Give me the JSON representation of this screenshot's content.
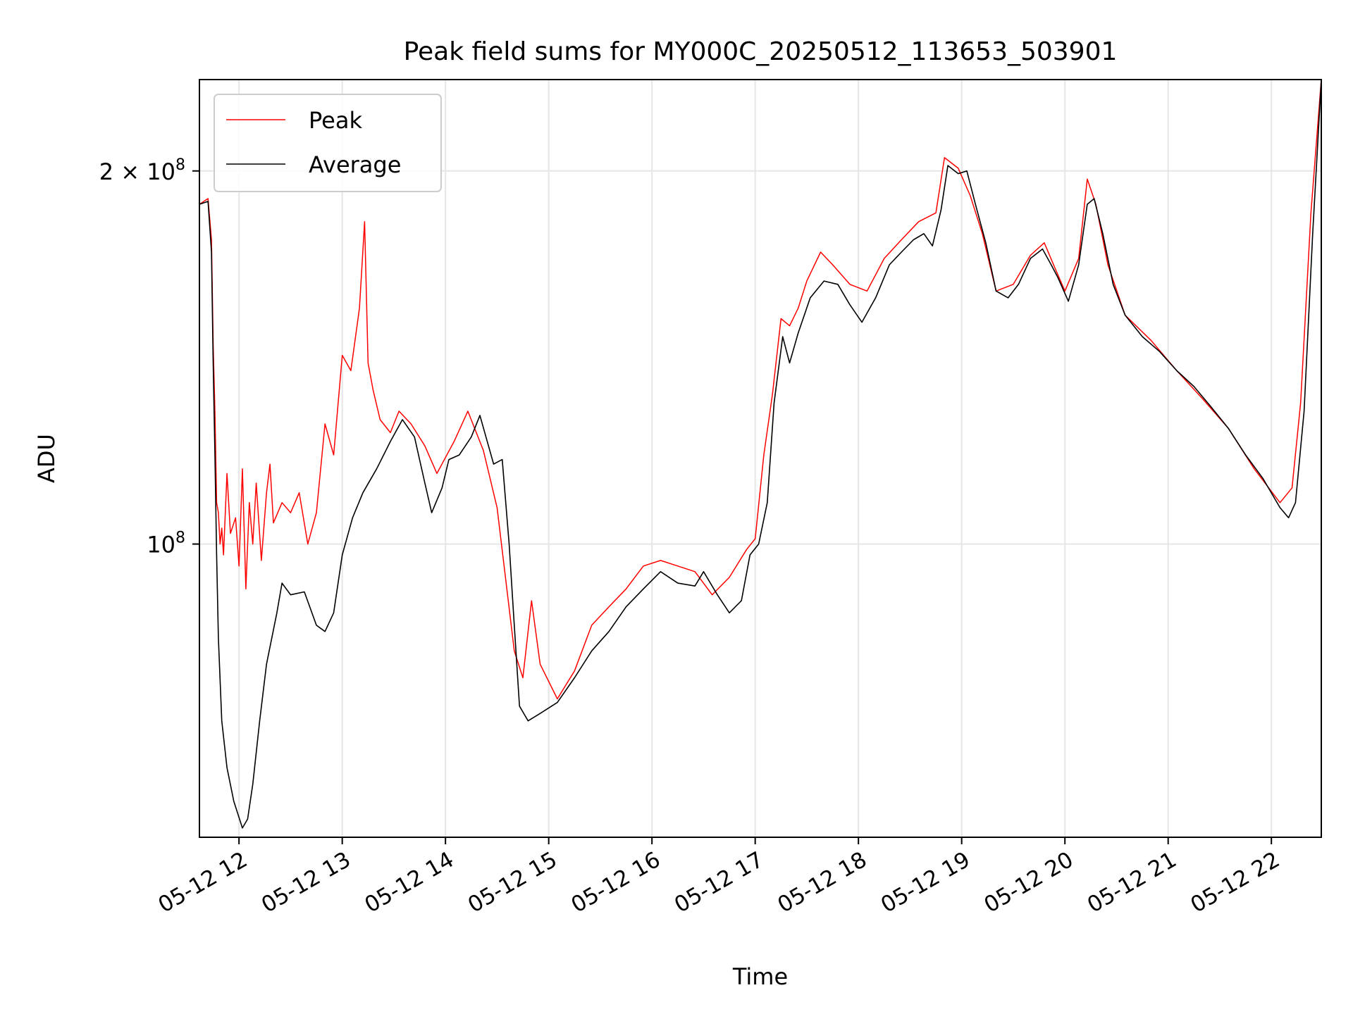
{
  "chart_data": {
    "type": "line",
    "title": "Peak field sums for MY000C_20250512_113653_503901",
    "xlabel": "Time",
    "ylabel": "ADU",
    "xscale": "time",
    "yscale": "log",
    "xlim": [
      "2025-05-12 11:37",
      "2025-05-12 22:29"
    ],
    "ylim": [
      58000000,
      237000000
    ],
    "grid": true,
    "legend": "top-left",
    "x_ticks": [
      "05-12 12",
      "05-12 13",
      "05-12 14",
      "05-12 15",
      "05-12 16",
      "05-12 17",
      "05-12 18",
      "05-12 19",
      "05-12 20",
      "05-12 21",
      "05-12 22"
    ],
    "y_ticks": [
      {
        "value": 100000000,
        "label": "10",
        "exp": "8"
      },
      {
        "value": 200000000,
        "label": "2 × 10",
        "exp": "8"
      }
    ],
    "series": [
      {
        "name": "Peak",
        "color": "#ff0000",
        "points": [
          [
            "2025-05-12 11:37",
            188000000
          ],
          [
            "2025-05-12 11:42",
            190000000
          ],
          [
            "2025-05-12 11:44",
            176000000
          ],
          [
            "2025-05-12 11:45",
            145000000
          ],
          [
            "2025-05-12 11:46",
            128000000
          ],
          [
            "2025-05-12 11:47",
            108000000
          ],
          [
            "2025-05-12 11:48",
            106000000
          ],
          [
            "2025-05-12 11:49",
            100000000
          ],
          [
            "2025-05-12 11:50",
            103000000
          ],
          [
            "2025-05-12 11:51",
            98000000
          ],
          [
            "2025-05-12 11:53",
            114000000
          ],
          [
            "2025-05-12 11:55",
            102000000
          ],
          [
            "2025-05-12 11:58",
            105000000
          ],
          [
            "2025-05-12 12:00",
            96000000
          ],
          [
            "2025-05-12 12:02",
            115000000
          ],
          [
            "2025-05-12 12:04",
            92000000
          ],
          [
            "2025-05-12 12:06",
            108000000
          ],
          [
            "2025-05-12 12:08",
            100000000
          ],
          [
            "2025-05-12 12:10",
            112000000
          ],
          [
            "2025-05-12 12:13",
            97000000
          ],
          [
            "2025-05-12 12:16",
            110000000
          ],
          [
            "2025-05-12 12:18",
            116000000
          ],
          [
            "2025-05-12 12:20",
            104000000
          ],
          [
            "2025-05-12 12:25",
            108000000
          ],
          [
            "2025-05-12 12:30",
            106000000
          ],
          [
            "2025-05-12 12:35",
            110000000
          ],
          [
            "2025-05-12 12:40",
            100000000
          ],
          [
            "2025-05-12 12:45",
            106000000
          ],
          [
            "2025-05-12 12:50",
            125000000
          ],
          [
            "2025-05-12 12:55",
            118000000
          ],
          [
            "2025-05-12 13:00",
            142000000
          ],
          [
            "2025-05-12 13:05",
            138000000
          ],
          [
            "2025-05-12 13:10",
            155000000
          ],
          [
            "2025-05-12 13:13",
            182000000
          ],
          [
            "2025-05-12 13:15",
            140000000
          ],
          [
            "2025-05-12 13:18",
            133000000
          ],
          [
            "2025-05-12 13:22",
            126000000
          ],
          [
            "2025-05-12 13:28",
            123000000
          ],
          [
            "2025-05-12 13:33",
            128000000
          ],
          [
            "2025-05-12 13:40",
            125000000
          ],
          [
            "2025-05-12 13:48",
            120000000
          ],
          [
            "2025-05-12 13:55",
            114000000
          ],
          [
            "2025-05-12 14:05",
            121000000
          ],
          [
            "2025-05-12 14:13",
            128000000
          ],
          [
            "2025-05-12 14:22",
            119000000
          ],
          [
            "2025-05-12 14:30",
            107000000
          ],
          [
            "2025-05-12 14:40",
            82000000
          ],
          [
            "2025-05-12 14:45",
            78000000
          ],
          [
            "2025-05-12 14:50",
            90000000
          ],
          [
            "2025-05-12 14:55",
            80000000
          ],
          [
            "2025-05-12 15:05",
            75000000
          ],
          [
            "2025-05-12 15:15",
            79000000
          ],
          [
            "2025-05-12 15:25",
            86000000
          ],
          [
            "2025-05-12 15:35",
            89000000
          ],
          [
            "2025-05-12 15:45",
            92000000
          ],
          [
            "2025-05-12 15:55",
            96000000
          ],
          [
            "2025-05-12 16:05",
            97000000
          ],
          [
            "2025-05-12 16:15",
            96000000
          ],
          [
            "2025-05-12 16:25",
            95000000
          ],
          [
            "2025-05-12 16:35",
            91000000
          ],
          [
            "2025-05-12 16:45",
            94000000
          ],
          [
            "2025-05-12 16:55",
            99000000
          ],
          [
            "2025-05-12 17:00",
            101000000
          ],
          [
            "2025-05-12 17:05",
            118000000
          ],
          [
            "2025-05-12 17:10",
            132000000
          ],
          [
            "2025-05-12 17:15",
            152000000
          ],
          [
            "2025-05-12 17:20",
            150000000
          ],
          [
            "2025-05-12 17:25",
            155000000
          ],
          [
            "2025-05-12 17:30",
            163000000
          ],
          [
            "2025-05-12 17:38",
            172000000
          ],
          [
            "2025-05-12 17:45",
            168000000
          ],
          [
            "2025-05-12 17:55",
            162000000
          ],
          [
            "2025-05-12 18:05",
            160000000
          ],
          [
            "2025-05-12 18:15",
            170000000
          ],
          [
            "2025-05-12 18:25",
            176000000
          ],
          [
            "2025-05-12 18:35",
            182000000
          ],
          [
            "2025-05-12 18:45",
            185000000
          ],
          [
            "2025-05-12 18:50",
            205000000
          ],
          [
            "2025-05-12 18:58",
            201000000
          ],
          [
            "2025-05-12 19:05",
            191000000
          ],
          [
            "2025-05-12 19:12",
            178000000
          ],
          [
            "2025-05-12 19:20",
            160000000
          ],
          [
            "2025-05-12 19:30",
            162000000
          ],
          [
            "2025-05-12 19:40",
            171000000
          ],
          [
            "2025-05-12 19:48",
            175000000
          ],
          [
            "2025-05-12 19:55",
            166000000
          ],
          [
            "2025-05-12 20:00",
            160000000
          ],
          [
            "2025-05-12 20:08",
            170000000
          ],
          [
            "2025-05-12 20:13",
            197000000
          ],
          [
            "2025-05-12 20:18",
            188000000
          ],
          [
            "2025-05-12 20:25",
            168000000
          ],
          [
            "2025-05-12 20:35",
            153000000
          ],
          [
            "2025-05-12 20:50",
            146000000
          ],
          [
            "2025-05-12 21:05",
            138000000
          ],
          [
            "2025-05-12 21:20",
            131000000
          ],
          [
            "2025-05-12 21:35",
            124000000
          ],
          [
            "2025-05-12 21:50",
            115000000
          ],
          [
            "2025-05-12 22:05",
            108000000
          ],
          [
            "2025-05-12 22:12",
            111000000
          ],
          [
            "2025-05-12 22:17",
            130000000
          ],
          [
            "2025-05-12 22:23",
            185000000
          ],
          [
            "2025-05-12 22:29",
            237000000
          ]
        ]
      },
      {
        "name": "Average",
        "color": "#000000",
        "points": [
          [
            "2025-05-12 11:37",
            188000000
          ],
          [
            "2025-05-12 11:42",
            189000000
          ],
          [
            "2025-05-12 11:44",
            172000000
          ],
          [
            "2025-05-12 11:45",
            140000000
          ],
          [
            "2025-05-12 11:46",
            118000000
          ],
          [
            "2025-05-12 11:47",
            98000000
          ],
          [
            "2025-05-12 11:48",
            84000000
          ],
          [
            "2025-05-12 11:50",
            72000000
          ],
          [
            "2025-05-12 11:53",
            66000000
          ],
          [
            "2025-05-12 11:57",
            62000000
          ],
          [
            "2025-05-12 12:02",
            59000000
          ],
          [
            "2025-05-12 12:05",
            60000000
          ],
          [
            "2025-05-12 12:08",
            64000000
          ],
          [
            "2025-05-12 12:12",
            72000000
          ],
          [
            "2025-05-12 12:16",
            80000000
          ],
          [
            "2025-05-12 12:22",
            88000000
          ],
          [
            "2025-05-12 12:25",
            93000000
          ],
          [
            "2025-05-12 12:30",
            91000000
          ],
          [
            "2025-05-12 12:38",
            91500000
          ],
          [
            "2025-05-12 12:45",
            86000000
          ],
          [
            "2025-05-12 12:50",
            85000000
          ],
          [
            "2025-05-12 12:55",
            88000000
          ],
          [
            "2025-05-12 13:00",
            98000000
          ],
          [
            "2025-05-12 13:06",
            105000000
          ],
          [
            "2025-05-12 13:12",
            110000000
          ],
          [
            "2025-05-12 13:20",
            115000000
          ],
          [
            "2025-05-12 13:28",
            121000000
          ],
          [
            "2025-05-12 13:35",
            126000000
          ],
          [
            "2025-05-12 13:42",
            122000000
          ],
          [
            "2025-05-12 13:48",
            112000000
          ],
          [
            "2025-05-12 13:52",
            106000000
          ],
          [
            "2025-05-12 13:58",
            111000000
          ],
          [
            "2025-05-12 14:02",
            117000000
          ],
          [
            "2025-05-12 14:08",
            118000000
          ],
          [
            "2025-05-12 14:15",
            122000000
          ],
          [
            "2025-05-12 14:20",
            127000000
          ],
          [
            "2025-05-12 14:25",
            120000000
          ],
          [
            "2025-05-12 14:28",
            116000000
          ],
          [
            "2025-05-12 14:33",
            117000000
          ],
          [
            "2025-05-12 14:37",
            100000000
          ],
          [
            "2025-05-12 14:40",
            86000000
          ],
          [
            "2025-05-12 14:43",
            74000000
          ],
          [
            "2025-05-12 14:48",
            72000000
          ],
          [
            "2025-05-12 14:55",
            73000000
          ],
          [
            "2025-05-12 15:05",
            74500000
          ],
          [
            "2025-05-12 15:15",
            78000000
          ],
          [
            "2025-05-12 15:25",
            82000000
          ],
          [
            "2025-05-12 15:35",
            85000000
          ],
          [
            "2025-05-12 15:45",
            89000000
          ],
          [
            "2025-05-12 15:55",
            92000000
          ],
          [
            "2025-05-12 16:05",
            95000000
          ],
          [
            "2025-05-12 16:15",
            93000000
          ],
          [
            "2025-05-12 16:25",
            92500000
          ],
          [
            "2025-05-12 16:30",
            95000000
          ],
          [
            "2025-05-12 16:38",
            91000000
          ],
          [
            "2025-05-12 16:45",
            88000000
          ],
          [
            "2025-05-12 16:52",
            90000000
          ],
          [
            "2025-05-12 16:57",
            98000000
          ],
          [
            "2025-05-12 17:02",
            100000000
          ],
          [
            "2025-05-12 17:07",
            108000000
          ],
          [
            "2025-05-12 17:11",
            130000000
          ],
          [
            "2025-05-12 17:16",
            147000000
          ],
          [
            "2025-05-12 17:20",
            140000000
          ],
          [
            "2025-05-12 17:25",
            148000000
          ],
          [
            "2025-05-12 17:32",
            158000000
          ],
          [
            "2025-05-12 17:40",
            163000000
          ],
          [
            "2025-05-12 17:48",
            162000000
          ],
          [
            "2025-05-12 17:55",
            156000000
          ],
          [
            "2025-05-12 18:02",
            151000000
          ],
          [
            "2025-05-12 18:10",
            158000000
          ],
          [
            "2025-05-12 18:18",
            168000000
          ],
          [
            "2025-05-12 18:25",
            172000000
          ],
          [
            "2025-05-12 18:32",
            176000000
          ],
          [
            "2025-05-12 18:38",
            178000000
          ],
          [
            "2025-05-12 18:43",
            174000000
          ],
          [
            "2025-05-12 18:48",
            186000000
          ],
          [
            "2025-05-12 18:52",
            202000000
          ],
          [
            "2025-05-12 18:58",
            199000000
          ],
          [
            "2025-05-12 19:03",
            200000000
          ],
          [
            "2025-05-12 19:08",
            188000000
          ],
          [
            "2025-05-12 19:14",
            175000000
          ],
          [
            "2025-05-12 19:20",
            160000000
          ],
          [
            "2025-05-12 19:27",
            158000000
          ],
          [
            "2025-05-12 19:33",
            162000000
          ],
          [
            "2025-05-12 19:40",
            170000000
          ],
          [
            "2025-05-12 19:47",
            173000000
          ],
          [
            "2025-05-12 19:52",
            168000000
          ],
          [
            "2025-05-12 19:56",
            164000000
          ],
          [
            "2025-05-12 20:02",
            157000000
          ],
          [
            "2025-05-12 20:08",
            168000000
          ],
          [
            "2025-05-12 20:13",
            188000000
          ],
          [
            "2025-05-12 20:17",
            190000000
          ],
          [
            "2025-05-12 20:22",
            178000000
          ],
          [
            "2025-05-12 20:28",
            162000000
          ],
          [
            "2025-05-12 20:35",
            153000000
          ],
          [
            "2025-05-12 20:45",
            147000000
          ],
          [
            "2025-05-12 20:55",
            143000000
          ],
          [
            "2025-05-12 21:05",
            138000000
          ],
          [
            "2025-05-12 21:15",
            134000000
          ],
          [
            "2025-05-12 21:25",
            129000000
          ],
          [
            "2025-05-12 21:35",
            124000000
          ],
          [
            "2025-05-12 21:45",
            118000000
          ],
          [
            "2025-05-12 21:55",
            113000000
          ],
          [
            "2025-05-12 22:05",
            107000000
          ],
          [
            "2025-05-12 22:10",
            105000000
          ],
          [
            "2025-05-12 22:14",
            108000000
          ],
          [
            "2025-05-12 22:19",
            128000000
          ],
          [
            "2025-05-12 22:24",
            178000000
          ],
          [
            "2025-05-12 22:29",
            237000000
          ]
        ]
      }
    ]
  }
}
